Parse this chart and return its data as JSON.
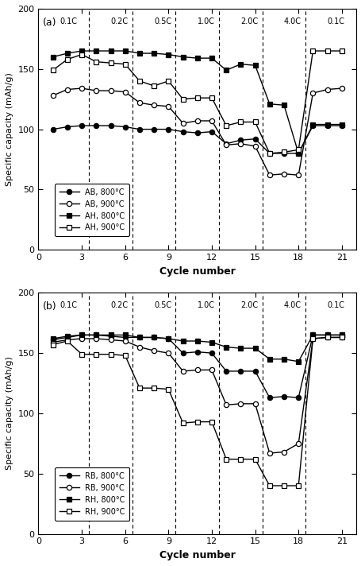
{
  "panel_a": {
    "title": "(a)",
    "series": [
      {
        "label": "AB, 800°C",
        "marker": "o",
        "fillstyle": "full",
        "color": "black",
        "x": [
          1,
          2,
          3,
          4,
          5,
          6,
          7,
          8,
          9,
          10,
          11,
          12,
          13,
          14,
          15,
          16,
          17,
          18,
          19,
          20,
          21
        ],
        "y": [
          100,
          102,
          103,
          103,
          103,
          102,
          100,
          100,
          100,
          98,
          97,
          98,
          88,
          91,
          92,
          80,
          80,
          80,
          103,
          103,
          103
        ]
      },
      {
        "label": "AB, 900°C",
        "marker": "o",
        "fillstyle": "none",
        "color": "black",
        "x": [
          1,
          2,
          3,
          4,
          5,
          6,
          7,
          8,
          9,
          10,
          11,
          12,
          13,
          14,
          15,
          16,
          17,
          18,
          19,
          20,
          21
        ],
        "y": [
          128,
          133,
          134,
          132,
          132,
          131,
          122,
          120,
          119,
          105,
          107,
          107,
          87,
          88,
          86,
          62,
          63,
          62,
          130,
          133,
          134
        ]
      },
      {
        "label": "AH, 800°C",
        "marker": "s",
        "fillstyle": "full",
        "color": "black",
        "x": [
          1,
          2,
          3,
          4,
          5,
          6,
          7,
          8,
          9,
          10,
          11,
          12,
          13,
          14,
          15,
          16,
          17,
          18,
          19,
          20,
          21
        ],
        "y": [
          160,
          163,
          165,
          165,
          165,
          165,
          163,
          163,
          162,
          160,
          159,
          159,
          149,
          154,
          153,
          121,
          120,
          80,
          104,
          104,
          104
        ]
      },
      {
        "label": "AH, 900°C",
        "marker": "s",
        "fillstyle": "none",
        "color": "black",
        "x": [
          1,
          2,
          3,
          4,
          5,
          6,
          7,
          8,
          9,
          10,
          11,
          12,
          13,
          14,
          15,
          16,
          17,
          18,
          19,
          20,
          21
        ],
        "y": [
          149,
          158,
          162,
          156,
          155,
          154,
          140,
          136,
          140,
          125,
          126,
          126,
          103,
          106,
          106,
          80,
          81,
          83,
          165,
          165,
          165
        ]
      }
    ],
    "c_rate_labels": [
      "0.1C",
      "0.2C",
      "0.5C",
      "1.0C",
      "2.0C",
      "4.0C",
      "0.1C"
    ],
    "c_rate_x": [
      1.5,
      5.0,
      8.0,
      11.0,
      14.0,
      17.0,
      20.0
    ],
    "vlines": [
      3.5,
      6.5,
      9.5,
      12.5,
      15.5,
      18.5
    ],
    "ylabel": "Specific capacity (mAh/g)",
    "xlabel": "Cycle number",
    "ylim": [
      0,
      200
    ],
    "xlim": [
      0,
      22
    ]
  },
  "panel_b": {
    "title": "(b)",
    "series": [
      {
        "label": "RB, 800°C",
        "marker": "o",
        "fillstyle": "full",
        "color": "black",
        "x": [
          1,
          2,
          3,
          4,
          5,
          6,
          7,
          8,
          9,
          10,
          11,
          12,
          13,
          14,
          15,
          16,
          17,
          18,
          19,
          20,
          21
        ],
        "y": [
          161,
          163,
          165,
          165,
          164,
          163,
          163,
          163,
          162,
          150,
          151,
          150,
          135,
          135,
          135,
          113,
          114,
          113,
          165,
          165,
          165
        ]
      },
      {
        "label": "RB, 900°C",
        "marker": "o",
        "fillstyle": "none",
        "color": "black",
        "x": [
          1,
          2,
          3,
          4,
          5,
          6,
          7,
          8,
          9,
          10,
          11,
          12,
          13,
          14,
          15,
          16,
          17,
          18,
          19,
          20,
          21
        ],
        "y": [
          159,
          161,
          162,
          162,
          161,
          160,
          155,
          152,
          150,
          135,
          136,
          136,
          107,
          108,
          108,
          67,
          68,
          75,
          162,
          163,
          163
        ]
      },
      {
        "label": "RH, 800°C",
        "marker": "s",
        "fillstyle": "full",
        "color": "black",
        "x": [
          1,
          2,
          3,
          4,
          5,
          6,
          7,
          8,
          9,
          10,
          11,
          12,
          13,
          14,
          15,
          16,
          17,
          18,
          19,
          20,
          21
        ],
        "y": [
          162,
          164,
          165,
          165,
          165,
          165,
          163,
          163,
          162,
          160,
          160,
          159,
          155,
          154,
          154,
          145,
          145,
          143,
          165,
          165,
          165
        ]
      },
      {
        "label": "RH, 900°C",
        "marker": "s",
        "fillstyle": "none",
        "color": "black",
        "x": [
          1,
          2,
          3,
          4,
          5,
          6,
          7,
          8,
          9,
          10,
          11,
          12,
          13,
          14,
          15,
          16,
          17,
          18,
          19,
          20,
          21
        ],
        "y": [
          157,
          160,
          149,
          149,
          149,
          148,
          121,
          121,
          120,
          92,
          93,
          93,
          62,
          62,
          62,
          40,
          40,
          40,
          162,
          163,
          163
        ]
      }
    ],
    "c_rate_labels": [
      "0.1C",
      "0.2C",
      "0.5C",
      "1.0C",
      "2.0C",
      "4.0C",
      "0.1C"
    ],
    "c_rate_x": [
      1.5,
      5.0,
      8.0,
      11.0,
      14.0,
      17.0,
      20.0
    ],
    "vlines": [
      3.5,
      6.5,
      9.5,
      12.5,
      15.5,
      18.5
    ],
    "ylabel": "Specific capacity (mAh/g)",
    "xlabel": "Cycle number",
    "ylim": [
      0,
      200
    ],
    "xlim": [
      0,
      22
    ]
  },
  "yticks": [
    0,
    50,
    100,
    150,
    200
  ],
  "xticks": [
    0,
    3,
    6,
    9,
    12,
    15,
    18,
    21
  ],
  "title_fontsize": 9,
  "label_fontsize": 8,
  "crate_fontsize": 7,
  "tick_fontsize": 8,
  "legend_fontsize": 7,
  "xlabel_fontsize": 9,
  "ylabel_fontsize": 8
}
